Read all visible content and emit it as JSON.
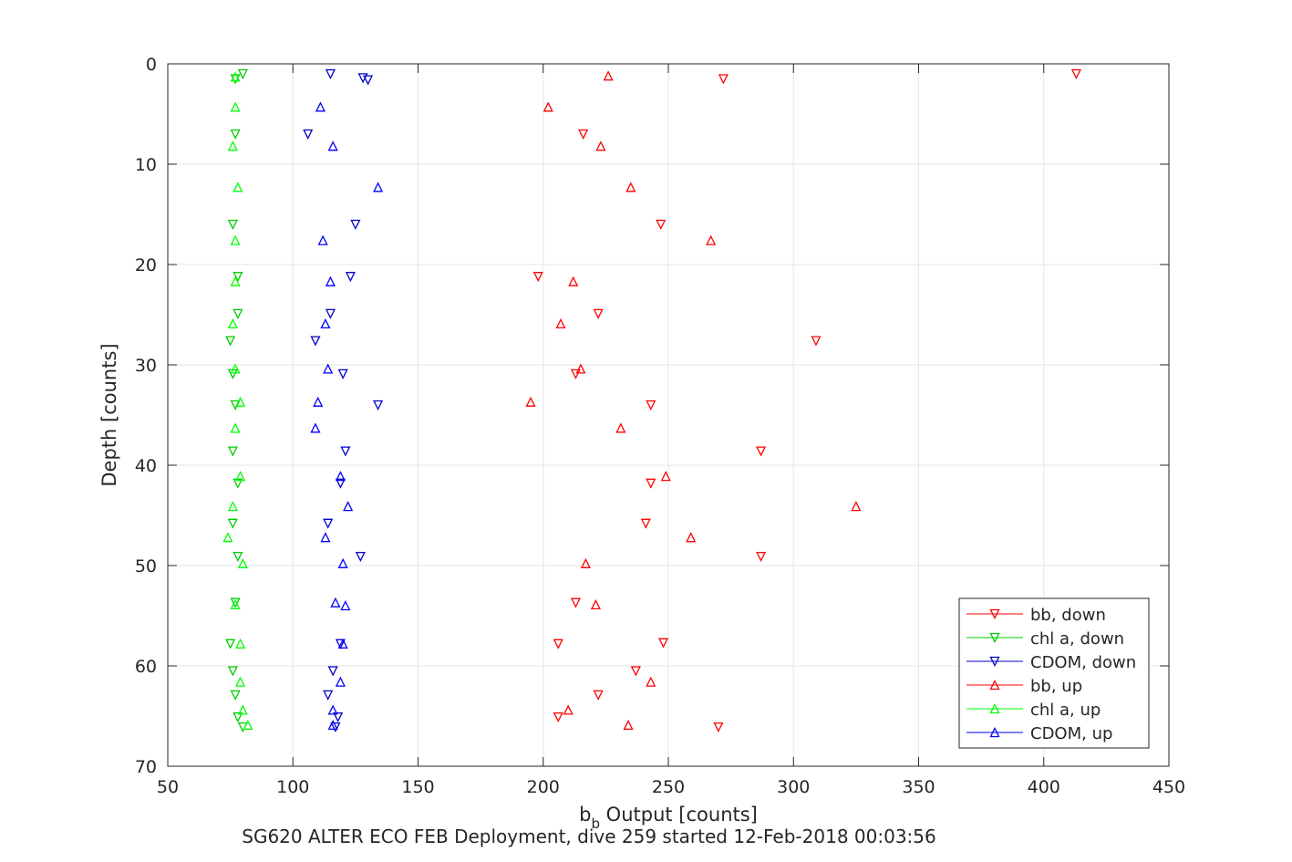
{
  "chart_data": {
    "type": "scatter",
    "title": "",
    "caption": "SG620 ALTER ECO FEB Deployment, dive 259 started 12-Feb-2018 00:03:56",
    "xlabel_main": "b",
    "xlabel_sub": "b",
    "xlabel_rest": " Output [counts]",
    "ylabel": "Depth [counts]",
    "xlim": [
      50,
      450
    ],
    "ylim": [
      0,
      70
    ],
    "y_reversed": true,
    "grid": true,
    "legend_position": "bottom-right",
    "xticks": [
      "50",
      "100",
      "150",
      "200",
      "250",
      "300",
      "350",
      "400",
      "450"
    ],
    "yticks": [
      "0",
      "10",
      "20",
      "30",
      "40",
      "50",
      "60",
      "70"
    ],
    "series": [
      {
        "name": "bb, down",
        "color": "#ff0000",
        "marker": "down",
        "points": [
          [
            413,
            1.0
          ],
          [
            272,
            1.5
          ],
          [
            216,
            7.0
          ],
          [
            247,
            16.0
          ],
          [
            198,
            21.2
          ],
          [
            222,
            24.9
          ],
          [
            309,
            27.6
          ],
          [
            213,
            30.9
          ],
          [
            243,
            34.0
          ],
          [
            287,
            38.6
          ],
          [
            243,
            41.8
          ],
          [
            241,
            45.8
          ],
          [
            287,
            49.1
          ],
          [
            213,
            53.7
          ],
          [
            206,
            57.8
          ],
          [
            248,
            57.7
          ],
          [
            237,
            60.5
          ],
          [
            222,
            62.9
          ],
          [
            206,
            65.1
          ],
          [
            270,
            66.1
          ]
        ]
      },
      {
        "name": "chl a, down",
        "color": "#00cc00",
        "marker": "down",
        "points": [
          [
            80,
            1.0
          ],
          [
            77,
            1.5
          ],
          [
            77,
            7.0
          ],
          [
            76,
            16.0
          ],
          [
            78,
            21.2
          ],
          [
            78,
            24.9
          ],
          [
            75,
            27.6
          ],
          [
            76,
            30.9
          ],
          [
            77,
            34.0
          ],
          [
            76,
            38.6
          ],
          [
            78,
            41.8
          ],
          [
            76,
            45.8
          ],
          [
            78,
            49.1
          ],
          [
            77,
            53.7
          ],
          [
            75,
            57.8
          ],
          [
            76,
            60.5
          ],
          [
            77,
            62.9
          ],
          [
            78,
            65.1
          ],
          [
            80,
            66.1
          ]
        ]
      },
      {
        "name": "CDOM, down",
        "color": "#0000cc",
        "marker": "down",
        "points": [
          [
            115,
            1.0
          ],
          [
            128,
            1.4
          ],
          [
            130,
            1.6
          ],
          [
            106,
            7.0
          ],
          [
            125,
            16.0
          ],
          [
            123,
            21.2
          ],
          [
            115,
            24.9
          ],
          [
            109,
            27.6
          ],
          [
            120,
            30.9
          ],
          [
            134,
            34.0
          ],
          [
            121,
            38.6
          ],
          [
            119,
            41.8
          ],
          [
            114,
            45.8
          ],
          [
            127,
            49.1
          ],
          [
            119,
            57.8
          ],
          [
            116,
            60.5
          ],
          [
            114,
            62.9
          ],
          [
            118,
            65.1
          ],
          [
            117,
            66.1
          ]
        ]
      },
      {
        "name": "bb, up",
        "color": "#ff0000",
        "marker": "up",
        "points": [
          [
            226,
            1.2
          ],
          [
            202,
            4.3
          ],
          [
            223,
            8.2
          ],
          [
            235,
            12.3
          ],
          [
            267,
            17.6
          ],
          [
            212,
            21.7
          ],
          [
            207,
            25.9
          ],
          [
            215,
            30.4
          ],
          [
            195,
            33.7
          ],
          [
            231,
            36.3
          ],
          [
            249,
            41.1
          ],
          [
            325,
            44.1
          ],
          [
            259,
            47.2
          ],
          [
            217,
            49.8
          ],
          [
            221,
            53.9
          ],
          [
            243,
            61.6
          ],
          [
            210,
            64.4
          ],
          [
            234,
            65.9
          ]
        ]
      },
      {
        "name": "chl a, up",
        "color": "#00ff00",
        "marker": "up",
        "points": [
          [
            77,
            1.3
          ],
          [
            77,
            4.3
          ],
          [
            76,
            8.2
          ],
          [
            78,
            12.3
          ],
          [
            77,
            17.6
          ],
          [
            77,
            21.7
          ],
          [
            76,
            25.9
          ],
          [
            77,
            30.4
          ],
          [
            79,
            33.7
          ],
          [
            77,
            36.3
          ],
          [
            79,
            41.1
          ],
          [
            76,
            44.1
          ],
          [
            74,
            47.2
          ],
          [
            80,
            49.8
          ],
          [
            77,
            53.9
          ],
          [
            79,
            57.8
          ],
          [
            79,
            61.6
          ],
          [
            80,
            64.4
          ],
          [
            82,
            65.9
          ]
        ]
      },
      {
        "name": "CDOM, up",
        "color": "#0000ff",
        "marker": "up",
        "points": [
          [
            111,
            4.3
          ],
          [
            116,
            8.2
          ],
          [
            134,
            12.3
          ],
          [
            112,
            17.6
          ],
          [
            115,
            21.7
          ],
          [
            113,
            25.9
          ],
          [
            114,
            30.4
          ],
          [
            110,
            33.7
          ],
          [
            109,
            36.3
          ],
          [
            119,
            41.1
          ],
          [
            122,
            44.1
          ],
          [
            113,
            47.2
          ],
          [
            120,
            49.8
          ],
          [
            117,
            53.7
          ],
          [
            121,
            54.0
          ],
          [
            120,
            57.8
          ],
          [
            119,
            61.6
          ],
          [
            116,
            64.4
          ],
          [
            116,
            65.9
          ]
        ]
      }
    ]
  }
}
